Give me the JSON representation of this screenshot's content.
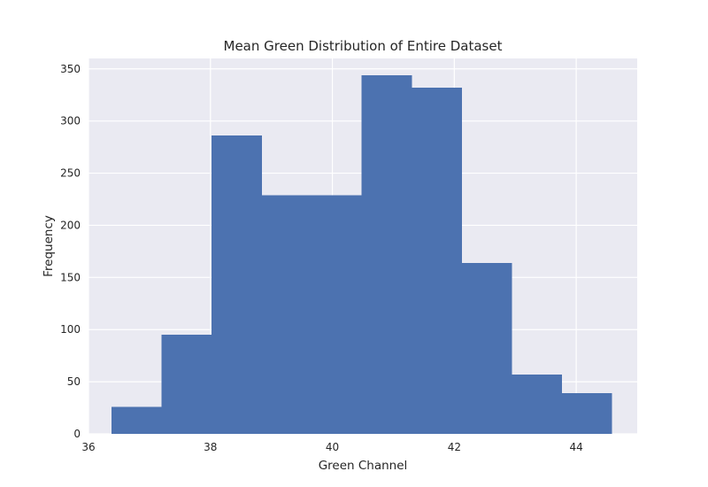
{
  "chart_data": {
    "type": "bar",
    "title": "Mean Green Distribution of Entire Dataset",
    "xlabel": "Green Channel",
    "ylabel": "Frequency",
    "bin_edges": [
      36.38,
      37.2,
      38.02,
      38.84,
      39.66,
      40.48,
      41.3,
      42.12,
      42.94,
      43.76,
      44.58
    ],
    "values": [
      26,
      95,
      286,
      229,
      229,
      344,
      332,
      164,
      57,
      39
    ],
    "xlim": [
      36,
      45
    ],
    "ylim": [
      0,
      360
    ],
    "xticks": [
      36,
      38,
      40,
      42,
      44
    ],
    "yticks": [
      0,
      50,
      100,
      150,
      200,
      250,
      300,
      350
    ],
    "bar_color": "#4c72b0",
    "background_color": "#eaeaf2",
    "grid": true
  }
}
